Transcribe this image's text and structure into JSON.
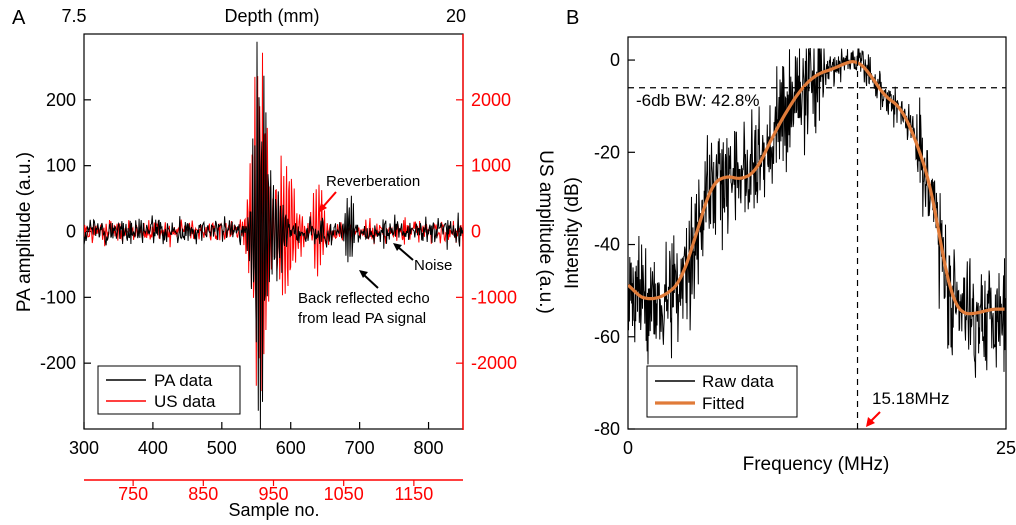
{
  "panel_a": {
    "label": "A",
    "top_axis_label": "Depth (mm)",
    "top_ticks": [
      "7.5",
      "20"
    ],
    "left_axis_label": "PA amplitude (a.u.)",
    "right_axis_label": "US amplitude (a.u.)",
    "bottom_axis_label": "Sample no.",
    "annotations": {
      "reverberation": "Reverberation",
      "noise": "Noise",
      "echo_line1": "Back reflected echo",
      "echo_line2": "from lead PA signal"
    },
    "legend": [
      "PA data",
      "US data"
    ]
  },
  "panel_b": {
    "label": "B",
    "ylabel": "Intensity (dB)",
    "xlabel": "Frequency (MHz)",
    "bw_label": "-6db BW: 42.8%",
    "peak_label": "15.18MHz",
    "legend": [
      "Raw data",
      "Fitted"
    ]
  },
  "colors": {
    "pa": "#000000",
    "us": "#ff0000",
    "raw": "#000000",
    "fitted": "#e07b39",
    "right_axis": "#ff0000"
  },
  "chart_data": [
    {
      "type": "line",
      "panel": "A",
      "x_bottom": {
        "label": "Sample no.",
        "range": [
          300,
          850
        ],
        "ticks": [
          300,
          400,
          500,
          600,
          700,
          800
        ]
      },
      "x_bottom2": {
        "range": [
          680,
          1220
        ],
        "ticks": [
          750,
          850,
          950,
          1050,
          1150
        ]
      },
      "x_top": {
        "label": "Depth (mm)",
        "range": [
          7.5,
          20
        ],
        "ticks": [
          7.5,
          20
        ]
      },
      "y_left": {
        "label": "PA amplitude (a.u.)",
        "range": [
          -300,
          300
        ],
        "ticks": [
          -200,
          -100,
          0,
          100,
          200
        ]
      },
      "y_right": {
        "label": "US amplitude (a.u.)",
        "range": [
          -3000,
          3000
        ],
        "ticks": [
          -2000,
          -1000,
          0,
          1000,
          2000
        ]
      },
      "series": [
        {
          "name": "PA data",
          "axis": "left",
          "noise": 10,
          "bursts": [
            {
              "center": 555,
              "width": 12,
              "amp": 275,
              "period": 3.2
            },
            {
              "center": 575,
              "width": 14,
              "amp": 90,
              "period": 3.5
            },
            {
              "center": 685,
              "width": 7,
              "amp": 58,
              "period": 3.0
            }
          ]
        },
        {
          "name": "US data",
          "axis": "right",
          "noise": 80,
          "bursts": [
            {
              "center": 555,
              "width": 14,
              "amp": 2600,
              "period": 3.6
            },
            {
              "center": 590,
              "width": 20,
              "amp": 1100,
              "period": 3.8
            },
            {
              "center": 640,
              "width": 10,
              "amp": 650,
              "period": 4.0
            }
          ]
        }
      ]
    },
    {
      "type": "line",
      "panel": "B",
      "x": {
        "label": "Frequency (MHz)",
        "range": [
          0,
          25
        ],
        "ticks": [
          0,
          25
        ]
      },
      "y": {
        "label": "Intensity (dB)",
        "range": [
          -80,
          5
        ],
        "ticks": [
          -80,
          -60,
          -40,
          -20,
          0
        ]
      },
      "series": [
        {
          "name": "Fitted",
          "points": [
            [
              0,
              -48
            ],
            [
              0.5,
              -51
            ],
            [
              1.5,
              -52
            ],
            [
              2.5,
              -51
            ],
            [
              3.5,
              -48
            ],
            [
              4.5,
              -38
            ],
            [
              5.5,
              -27
            ],
            [
              6.5,
              -25
            ],
            [
              7.5,
              -26
            ],
            [
              8.5,
              -24
            ],
            [
              9.5,
              -17
            ],
            [
              10.5,
              -11
            ],
            [
              11.5,
              -6
            ],
            [
              12.5,
              -3
            ],
            [
              13.5,
              -2
            ],
            [
              14.5,
              -0.5
            ],
            [
              15.18,
              0
            ],
            [
              16,
              -3
            ],
            [
              17,
              -8
            ],
            [
              18,
              -10
            ],
            [
              19,
              -17
            ],
            [
              20,
              -27
            ],
            [
              20.5,
              -36
            ],
            [
              21,
              -46
            ],
            [
              21.5,
              -52
            ],
            [
              22,
              -55
            ],
            [
              23,
              -55
            ],
            [
              24,
              -54
            ],
            [
              25,
              -54
            ]
          ]
        },
        {
          "name": "Raw data",
          "noise_db": 6,
          "follows": "Fitted"
        }
      ],
      "guides": {
        "hline_db": -6,
        "vline_mhz": 15.18
      }
    }
  ]
}
